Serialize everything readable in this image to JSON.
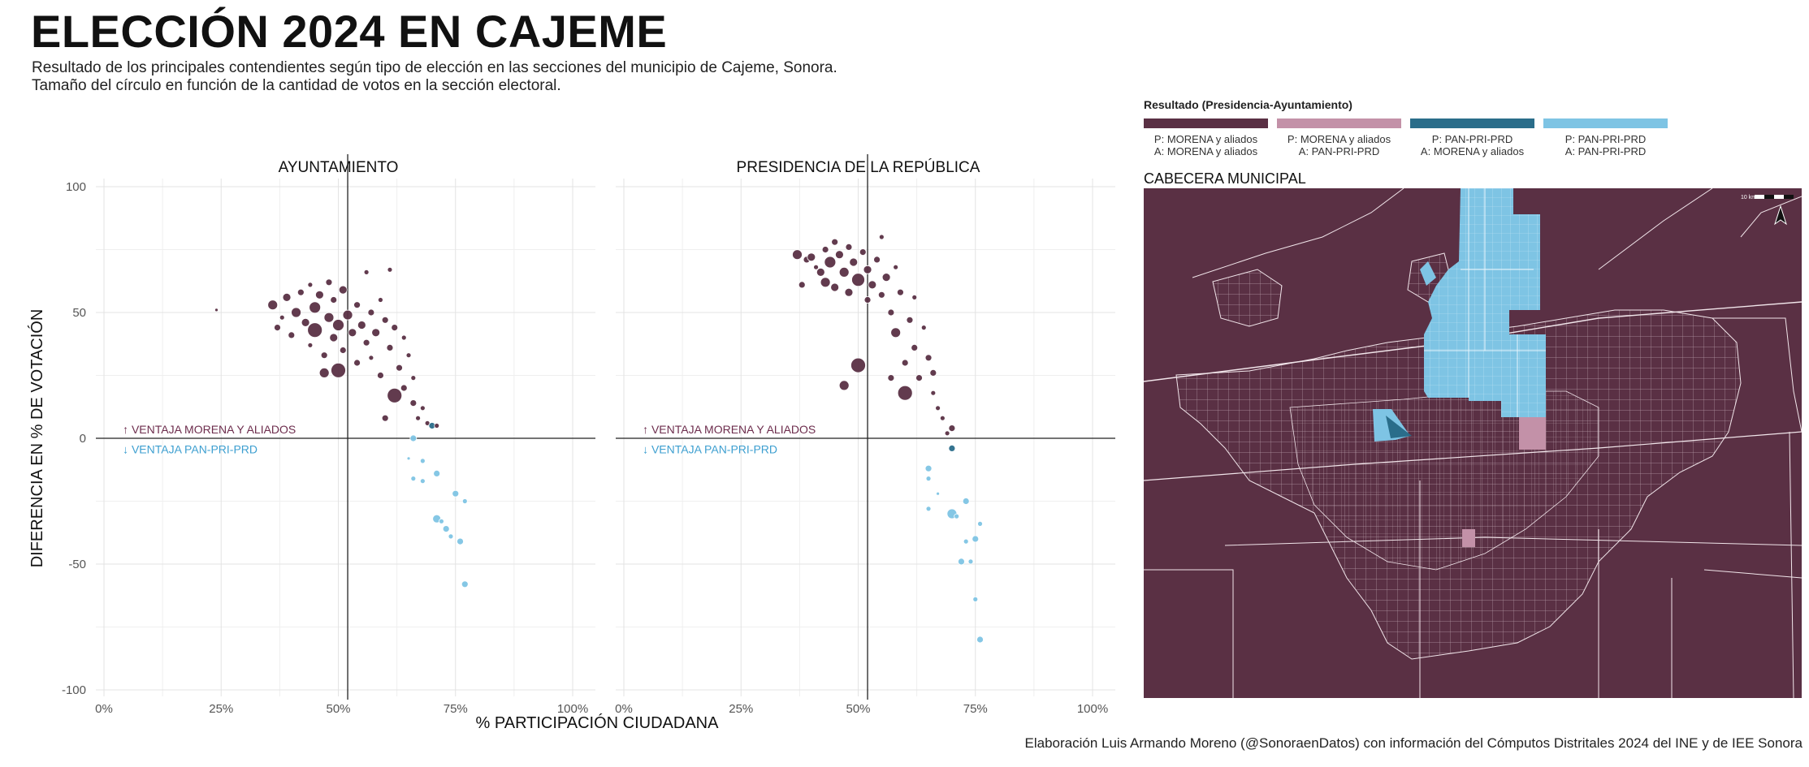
{
  "title": "ELECCIÓN 2024 EN CAJEME",
  "subtitle": [
    "Resultado de los principales contendientes según tipo de elección en las secciones del municipio de Cajeme, Sonora.",
    "Tamaño del círculo en función de la cantidad de votos en la sección electoral."
  ],
  "caption": "Elaboración Luis Armando Moreno (@SonoraenDatos) con información del Cómputos Distritales 2024 del INE y de IEE Sonora",
  "colors": {
    "morena_both": "#5a3044",
    "morena_p_pan_a": "#c391a8",
    "pan_p_morena_a": "#2a6d8a",
    "pan_both": "#7ec4e4",
    "annotation_morena": "#6d2d4d",
    "annotation_pan": "#3d9fd0"
  },
  "legend": {
    "title": "Resultado (Presidencia-Ayuntamiento)",
    "items": [
      {
        "line1": "P: MORENA y aliados",
        "line2": "A: MORENA y aliados",
        "color": "#5a3044"
      },
      {
        "line1": "P: MORENA y aliados",
        "line2": "A: PAN-PRI-PRD",
        "color": "#c391a8"
      },
      {
        "line1": "P: PAN-PRI-PRD",
        "line2": "A: MORENA y aliados",
        "color": "#2a6d8a"
      },
      {
        "line1": "P: PAN-PRI-PRD",
        "line2": "A: PAN-PRI-PRD",
        "color": "#7ec4e4"
      }
    ]
  },
  "map": {
    "title": "CABECERA MUNICIPAL",
    "scale_label": "10 km"
  },
  "chart_data": {
    "type": "scatter",
    "xlabel": "% PARTICIPACIÓN CIUDADANA",
    "ylabel": "DIFERENCIA EN % DE VOTACIÓN",
    "xlim": [
      0,
      100
    ],
    "ylim": [
      -100,
      100
    ],
    "xticks": [
      "0%",
      "25%",
      "50%",
      "75%",
      "100%"
    ],
    "yticks": [
      "100",
      "50",
      "0",
      "-50",
      "-100"
    ],
    "reference_x": 52,
    "annotation_up": "↑ VENTAJA MORENA Y ALIADOS",
    "annotation_down": "↓ VENTAJA PAN-PRI-PRD",
    "panels": [
      {
        "title": "AYUNTAMIENTO",
        "points": [
          {
            "x": 24,
            "y": 51,
            "r": 2,
            "c": "morena_both"
          },
          {
            "x": 36,
            "y": 53,
            "r": 6,
            "c": "morena_both"
          },
          {
            "x": 37,
            "y": 44,
            "r": 4,
            "c": "morena_both"
          },
          {
            "x": 38,
            "y": 48,
            "r": 3,
            "c": "morena_both"
          },
          {
            "x": 39,
            "y": 56,
            "r": 5,
            "c": "morena_both"
          },
          {
            "x": 40,
            "y": 41,
            "r": 4,
            "c": "morena_both"
          },
          {
            "x": 41,
            "y": 50,
            "r": 6,
            "c": "morena_both"
          },
          {
            "x": 42,
            "y": 58,
            "r": 4,
            "c": "morena_both"
          },
          {
            "x": 43,
            "y": 46,
            "r": 5,
            "c": "morena_both"
          },
          {
            "x": 44,
            "y": 61,
            "r": 3,
            "c": "morena_both"
          },
          {
            "x": 44,
            "y": 37,
            "r": 3,
            "c": "morena_both"
          },
          {
            "x": 45,
            "y": 52,
            "r": 7,
            "c": "morena_both"
          },
          {
            "x": 45,
            "y": 43,
            "r": 9,
            "c": "morena_both"
          },
          {
            "x": 46,
            "y": 57,
            "r": 5,
            "c": "morena_both"
          },
          {
            "x": 47,
            "y": 33,
            "r": 4,
            "c": "morena_both"
          },
          {
            "x": 47,
            "y": 26,
            "r": 6,
            "c": "morena_both"
          },
          {
            "x": 48,
            "y": 48,
            "r": 6,
            "c": "morena_both"
          },
          {
            "x": 48,
            "y": 62,
            "r": 4,
            "c": "morena_both"
          },
          {
            "x": 49,
            "y": 40,
            "r": 5,
            "c": "morena_both"
          },
          {
            "x": 49,
            "y": 55,
            "r": 4,
            "c": "morena_both"
          },
          {
            "x": 50,
            "y": 27,
            "r": 9,
            "c": "morena_both"
          },
          {
            "x": 50,
            "y": 45,
            "r": 7,
            "c": "morena_both"
          },
          {
            "x": 51,
            "y": 35,
            "r": 4,
            "c": "morena_both"
          },
          {
            "x": 51,
            "y": 59,
            "r": 5,
            "c": "morena_both"
          },
          {
            "x": 52,
            "y": 49,
            "r": 6,
            "c": "morena_both"
          },
          {
            "x": 53,
            "y": 42,
            "r": 5,
            "c": "morena_both"
          },
          {
            "x": 54,
            "y": 30,
            "r": 4,
            "c": "morena_both"
          },
          {
            "x": 54,
            "y": 53,
            "r": 4,
            "c": "morena_both"
          },
          {
            "x": 55,
            "y": 45,
            "r": 5,
            "c": "morena_both"
          },
          {
            "x": 56,
            "y": 38,
            "r": 4,
            "c": "morena_both"
          },
          {
            "x": 56,
            "y": 66,
            "r": 3,
            "c": "morena_both"
          },
          {
            "x": 57,
            "y": 50,
            "r": 4,
            "c": "morena_both"
          },
          {
            "x": 57,
            "y": 32,
            "r": 3,
            "c": "morena_both"
          },
          {
            "x": 58,
            "y": 42,
            "r": 5,
            "c": "morena_both"
          },
          {
            "x": 59,
            "y": 25,
            "r": 4,
            "c": "morena_both"
          },
          {
            "x": 59,
            "y": 55,
            "r": 3,
            "c": "morena_both"
          },
          {
            "x": 60,
            "y": 47,
            "r": 4,
            "c": "morena_both"
          },
          {
            "x": 60,
            "y": 8,
            "r": 4,
            "c": "morena_both"
          },
          {
            "x": 61,
            "y": 67,
            "r": 3,
            "c": "morena_both"
          },
          {
            "x": 61,
            "y": 36,
            "r": 4,
            "c": "morena_both"
          },
          {
            "x": 62,
            "y": 17,
            "r": 9,
            "c": "morena_both"
          },
          {
            "x": 62,
            "y": 44,
            "r": 4,
            "c": "morena_both"
          },
          {
            "x": 63,
            "y": 28,
            "r": 4,
            "c": "morena_both"
          },
          {
            "x": 64,
            "y": 40,
            "r": 3,
            "c": "morena_both"
          },
          {
            "x": 64,
            "y": 20,
            "r": 4,
            "c": "morena_both"
          },
          {
            "x": 65,
            "y": 33,
            "r": 3,
            "c": "morena_both"
          },
          {
            "x": 66,
            "y": 14,
            "r": 4,
            "c": "morena_both"
          },
          {
            "x": 66,
            "y": 24,
            "r": 3,
            "c": "morena_both"
          },
          {
            "x": 67,
            "y": 8,
            "r": 3,
            "c": "morena_both"
          },
          {
            "x": 68,
            "y": 12,
            "r": 3,
            "c": "morena_both"
          },
          {
            "x": 69,
            "y": 6,
            "r": 3,
            "c": "morena_both"
          },
          {
            "x": 70,
            "y": 5,
            "r": 4,
            "c": "pan_p_morena_a"
          },
          {
            "x": 71,
            "y": 5,
            "r": 3,
            "c": "morena_both"
          },
          {
            "x": 66,
            "y": 0,
            "r": 4,
            "c": "pan_both"
          },
          {
            "x": 65,
            "y": -8,
            "r": 2,
            "c": "pan_both"
          },
          {
            "x": 66,
            "y": -16,
            "r": 3,
            "c": "pan_both"
          },
          {
            "x": 68,
            "y": -9,
            "r": 3,
            "c": "pan_both"
          },
          {
            "x": 68,
            "y": -17,
            "r": 3,
            "c": "pan_both"
          },
          {
            "x": 71,
            "y": -14,
            "r": 4,
            "c": "pan_both"
          },
          {
            "x": 71,
            "y": -32,
            "r": 5,
            "c": "pan_both"
          },
          {
            "x": 72,
            "y": -33,
            "r": 3,
            "c": "pan_both"
          },
          {
            "x": 73,
            "y": -36,
            "r": 4,
            "c": "pan_both"
          },
          {
            "x": 74,
            "y": -39,
            "r": 3,
            "c": "pan_both"
          },
          {
            "x": 75,
            "y": -22,
            "r": 4,
            "c": "pan_both"
          },
          {
            "x": 76,
            "y": -41,
            "r": 4,
            "c": "pan_both"
          },
          {
            "x": 77,
            "y": -25,
            "r": 3,
            "c": "pan_both"
          },
          {
            "x": 77,
            "y": -58,
            "r": 4,
            "c": "pan_both"
          }
        ]
      },
      {
        "title": "PRESIDENCIA DE LA REPÚBLICA",
        "points": [
          {
            "x": 37,
            "y": 73,
            "r": 6,
            "c": "morena_both"
          },
          {
            "x": 38,
            "y": 61,
            "r": 4,
            "c": "morena_both"
          },
          {
            "x": 39,
            "y": 71,
            "r": 4,
            "c": "morena_both"
          },
          {
            "x": 40,
            "y": 72,
            "r": 5,
            "c": "morena_both"
          },
          {
            "x": 41,
            "y": 68,
            "r": 3,
            "c": "morena_both"
          },
          {
            "x": 42,
            "y": 66,
            "r": 5,
            "c": "morena_both"
          },
          {
            "x": 43,
            "y": 75,
            "r": 4,
            "c": "morena_both"
          },
          {
            "x": 43,
            "y": 62,
            "r": 6,
            "c": "morena_both"
          },
          {
            "x": 44,
            "y": 70,
            "r": 7,
            "c": "morena_both"
          },
          {
            "x": 45,
            "y": 78,
            "r": 4,
            "c": "morena_both"
          },
          {
            "x": 45,
            "y": 60,
            "r": 5,
            "c": "morena_both"
          },
          {
            "x": 46,
            "y": 73,
            "r": 5,
            "c": "morena_both"
          },
          {
            "x": 47,
            "y": 66,
            "r": 6,
            "c": "morena_both"
          },
          {
            "x": 47,
            "y": 21,
            "r": 6,
            "c": "morena_both"
          },
          {
            "x": 48,
            "y": 58,
            "r": 5,
            "c": "morena_both"
          },
          {
            "x": 48,
            "y": 76,
            "r": 4,
            "c": "morena_both"
          },
          {
            "x": 49,
            "y": 70,
            "r": 5,
            "c": "morena_both"
          },
          {
            "x": 50,
            "y": 63,
            "r": 8,
            "c": "morena_both"
          },
          {
            "x": 50,
            "y": 29,
            "r": 9,
            "c": "morena_both"
          },
          {
            "x": 51,
            "y": 74,
            "r": 4,
            "c": "morena_both"
          },
          {
            "x": 52,
            "y": 67,
            "r": 5,
            "c": "morena_both"
          },
          {
            "x": 52,
            "y": 55,
            "r": 4,
            "c": "morena_both"
          },
          {
            "x": 53,
            "y": 61,
            "r": 5,
            "c": "morena_both"
          },
          {
            "x": 54,
            "y": 71,
            "r": 4,
            "c": "morena_both"
          },
          {
            "x": 55,
            "y": 57,
            "r": 4,
            "c": "morena_both"
          },
          {
            "x": 55,
            "y": 80,
            "r": 3,
            "c": "morena_both"
          },
          {
            "x": 56,
            "y": 64,
            "r": 5,
            "c": "morena_both"
          },
          {
            "x": 57,
            "y": 50,
            "r": 4,
            "c": "morena_both"
          },
          {
            "x": 57,
            "y": 24,
            "r": 4,
            "c": "morena_both"
          },
          {
            "x": 58,
            "y": 42,
            "r": 6,
            "c": "morena_both"
          },
          {
            "x": 58,
            "y": 68,
            "r": 3,
            "c": "morena_both"
          },
          {
            "x": 59,
            "y": 58,
            "r": 4,
            "c": "morena_both"
          },
          {
            "x": 60,
            "y": 30,
            "r": 4,
            "c": "morena_both"
          },
          {
            "x": 60,
            "y": 18,
            "r": 9,
            "c": "morena_both"
          },
          {
            "x": 61,
            "y": 47,
            "r": 4,
            "c": "morena_both"
          },
          {
            "x": 62,
            "y": 36,
            "r": 4,
            "c": "morena_both"
          },
          {
            "x": 62,
            "y": 56,
            "r": 3,
            "c": "morena_both"
          },
          {
            "x": 63,
            "y": 24,
            "r": 4,
            "c": "morena_both"
          },
          {
            "x": 64,
            "y": 44,
            "r": 3,
            "c": "morena_both"
          },
          {
            "x": 65,
            "y": 32,
            "r": 4,
            "c": "morena_both"
          },
          {
            "x": 66,
            "y": 18,
            "r": 3,
            "c": "morena_both"
          },
          {
            "x": 66,
            "y": 26,
            "r": 4,
            "c": "morena_both"
          },
          {
            "x": 67,
            "y": 12,
            "r": 3,
            "c": "morena_both"
          },
          {
            "x": 68,
            "y": 8,
            "r": 3,
            "c": "morena_both"
          },
          {
            "x": 69,
            "y": 2,
            "r": 3,
            "c": "morena_both"
          },
          {
            "x": 70,
            "y": 4,
            "r": 4,
            "c": "morena_both"
          },
          {
            "x": 70,
            "y": -4,
            "r": 4,
            "c": "pan_p_morena_a"
          },
          {
            "x": 65,
            "y": -12,
            "r": 4,
            "c": "pan_both"
          },
          {
            "x": 65,
            "y": -16,
            "r": 3,
            "c": "pan_both"
          },
          {
            "x": 65,
            "y": -28,
            "r": 3,
            "c": "pan_both"
          },
          {
            "x": 67,
            "y": -22,
            "r": 2,
            "c": "pan_both"
          },
          {
            "x": 70,
            "y": -30,
            "r": 6,
            "c": "pan_both"
          },
          {
            "x": 71,
            "y": -31,
            "r": 3,
            "c": "pan_both"
          },
          {
            "x": 72,
            "y": -49,
            "r": 4,
            "c": "pan_both"
          },
          {
            "x": 73,
            "y": -41,
            "r": 3,
            "c": "pan_both"
          },
          {
            "x": 73,
            "y": -25,
            "r": 4,
            "c": "pan_both"
          },
          {
            "x": 74,
            "y": -49,
            "r": 3,
            "c": "pan_both"
          },
          {
            "x": 75,
            "y": -40,
            "r": 4,
            "c": "pan_both"
          },
          {
            "x": 75,
            "y": -64,
            "r": 3,
            "c": "pan_both"
          },
          {
            "x": 76,
            "y": -34,
            "r": 3,
            "c": "pan_both"
          },
          {
            "x": 76,
            "y": -80,
            "r": 4,
            "c": "pan_both"
          }
        ]
      }
    ]
  }
}
